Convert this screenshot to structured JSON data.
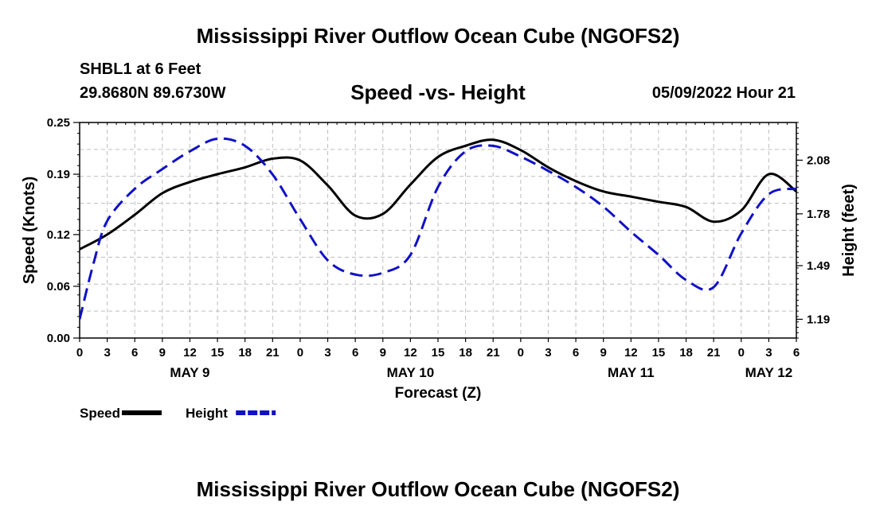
{
  "header": {
    "title": "Mississippi River Outflow Ocean Cube (NGOFS2)",
    "station": "SHBL1 at 6 Feet",
    "coordinates": "29.8680N  89.6730W",
    "chart_title": "Speed -vs- Height",
    "datetime": "05/09/2022 Hour 21"
  },
  "footer": {
    "title": "Mississippi River Outflow Ocean Cube (NGOFS2)"
  },
  "chart_data": {
    "type": "line",
    "title": "Speed -vs- Height",
    "xlabel": "Forecast (Z)",
    "ylabel": "Speed (Knots)",
    "y2label": "Height (feet)",
    "x_range_hours": [
      0,
      78
    ],
    "ylim": [
      0.0,
      0.25
    ],
    "y2lim": [
      1.085,
      2.291
    ],
    "grid": true,
    "x_tick_hours": [
      0,
      3,
      6,
      9,
      12,
      15,
      18,
      21,
      24,
      27,
      30,
      33,
      36,
      39,
      42,
      45,
      48,
      51,
      54,
      57,
      60,
      63,
      66,
      69,
      72,
      75,
      78
    ],
    "x_tick_labels": [
      "0",
      "3",
      "6",
      "9",
      "12",
      "15",
      "18",
      "21",
      "0",
      "3",
      "6",
      "9",
      "12",
      "15",
      "18",
      "21",
      "0",
      "3",
      "6",
      "9",
      "12",
      "15",
      "18",
      "21",
      "0",
      "3",
      "6"
    ],
    "date_labels": [
      {
        "hour": 12,
        "label": "MAY 9"
      },
      {
        "hour": 36,
        "label": "MAY 10"
      },
      {
        "hour": 60,
        "label": "MAY 11"
      },
      {
        "hour": 75,
        "label": "MAY 12"
      }
    ],
    "y_ticks": [
      0.0,
      0.06,
      0.12,
      0.19,
      0.25
    ],
    "y_tick_labels": [
      "0.00",
      "0.06",
      "0.12",
      "0.19",
      "0.25"
    ],
    "y2_ticks": [
      1.19,
      1.49,
      1.78,
      2.08
    ],
    "y2_tick_labels": [
      "1.19",
      "1.49",
      "1.78",
      "2.08"
    ],
    "legend": [
      {
        "label": "Speed",
        "color": "#000000",
        "style": "solid"
      },
      {
        "label": "Height",
        "color": "#1010c8",
        "style": "dashed"
      }
    ],
    "legend_position": "bottom-left",
    "series": [
      {
        "name": "Speed",
        "axis": "left",
        "units": "knots",
        "color": "#000000",
        "style": "solid",
        "x": [
          0,
          3,
          6,
          9,
          12,
          15,
          18,
          21,
          24,
          27,
          30,
          33,
          36,
          39,
          42,
          45,
          48,
          51,
          54,
          57,
          60,
          63,
          66,
          69,
          72,
          75,
          78
        ],
        "y": [
          0.103,
          0.12,
          0.143,
          0.168,
          0.181,
          0.19,
          0.198,
          0.208,
          0.206,
          0.177,
          0.142,
          0.144,
          0.178,
          0.21,
          0.223,
          0.23,
          0.218,
          0.198,
          0.182,
          0.17,
          0.164,
          0.158,
          0.152,
          0.135,
          0.148,
          0.19,
          0.17
        ]
      },
      {
        "name": "Height",
        "axis": "right",
        "units": "feet",
        "color": "#1010c8",
        "style": "dashed",
        "x": [
          0,
          1.5,
          3,
          6,
          9,
          12,
          15,
          18,
          21,
          24,
          27,
          30,
          33,
          36,
          39,
          42,
          45,
          48,
          51,
          54,
          57,
          60,
          63,
          66,
          69,
          72,
          75,
          78
        ],
        "y": [
          1.19,
          1.5,
          1.74,
          1.92,
          2.03,
          2.13,
          2.2,
          2.16,
          2.0,
          1.75,
          1.52,
          1.44,
          1.45,
          1.55,
          1.93,
          2.13,
          2.16,
          2.1,
          2.02,
          1.93,
          1.82,
          1.68,
          1.55,
          1.41,
          1.37,
          1.67,
          1.89,
          1.92
        ]
      }
    ]
  }
}
